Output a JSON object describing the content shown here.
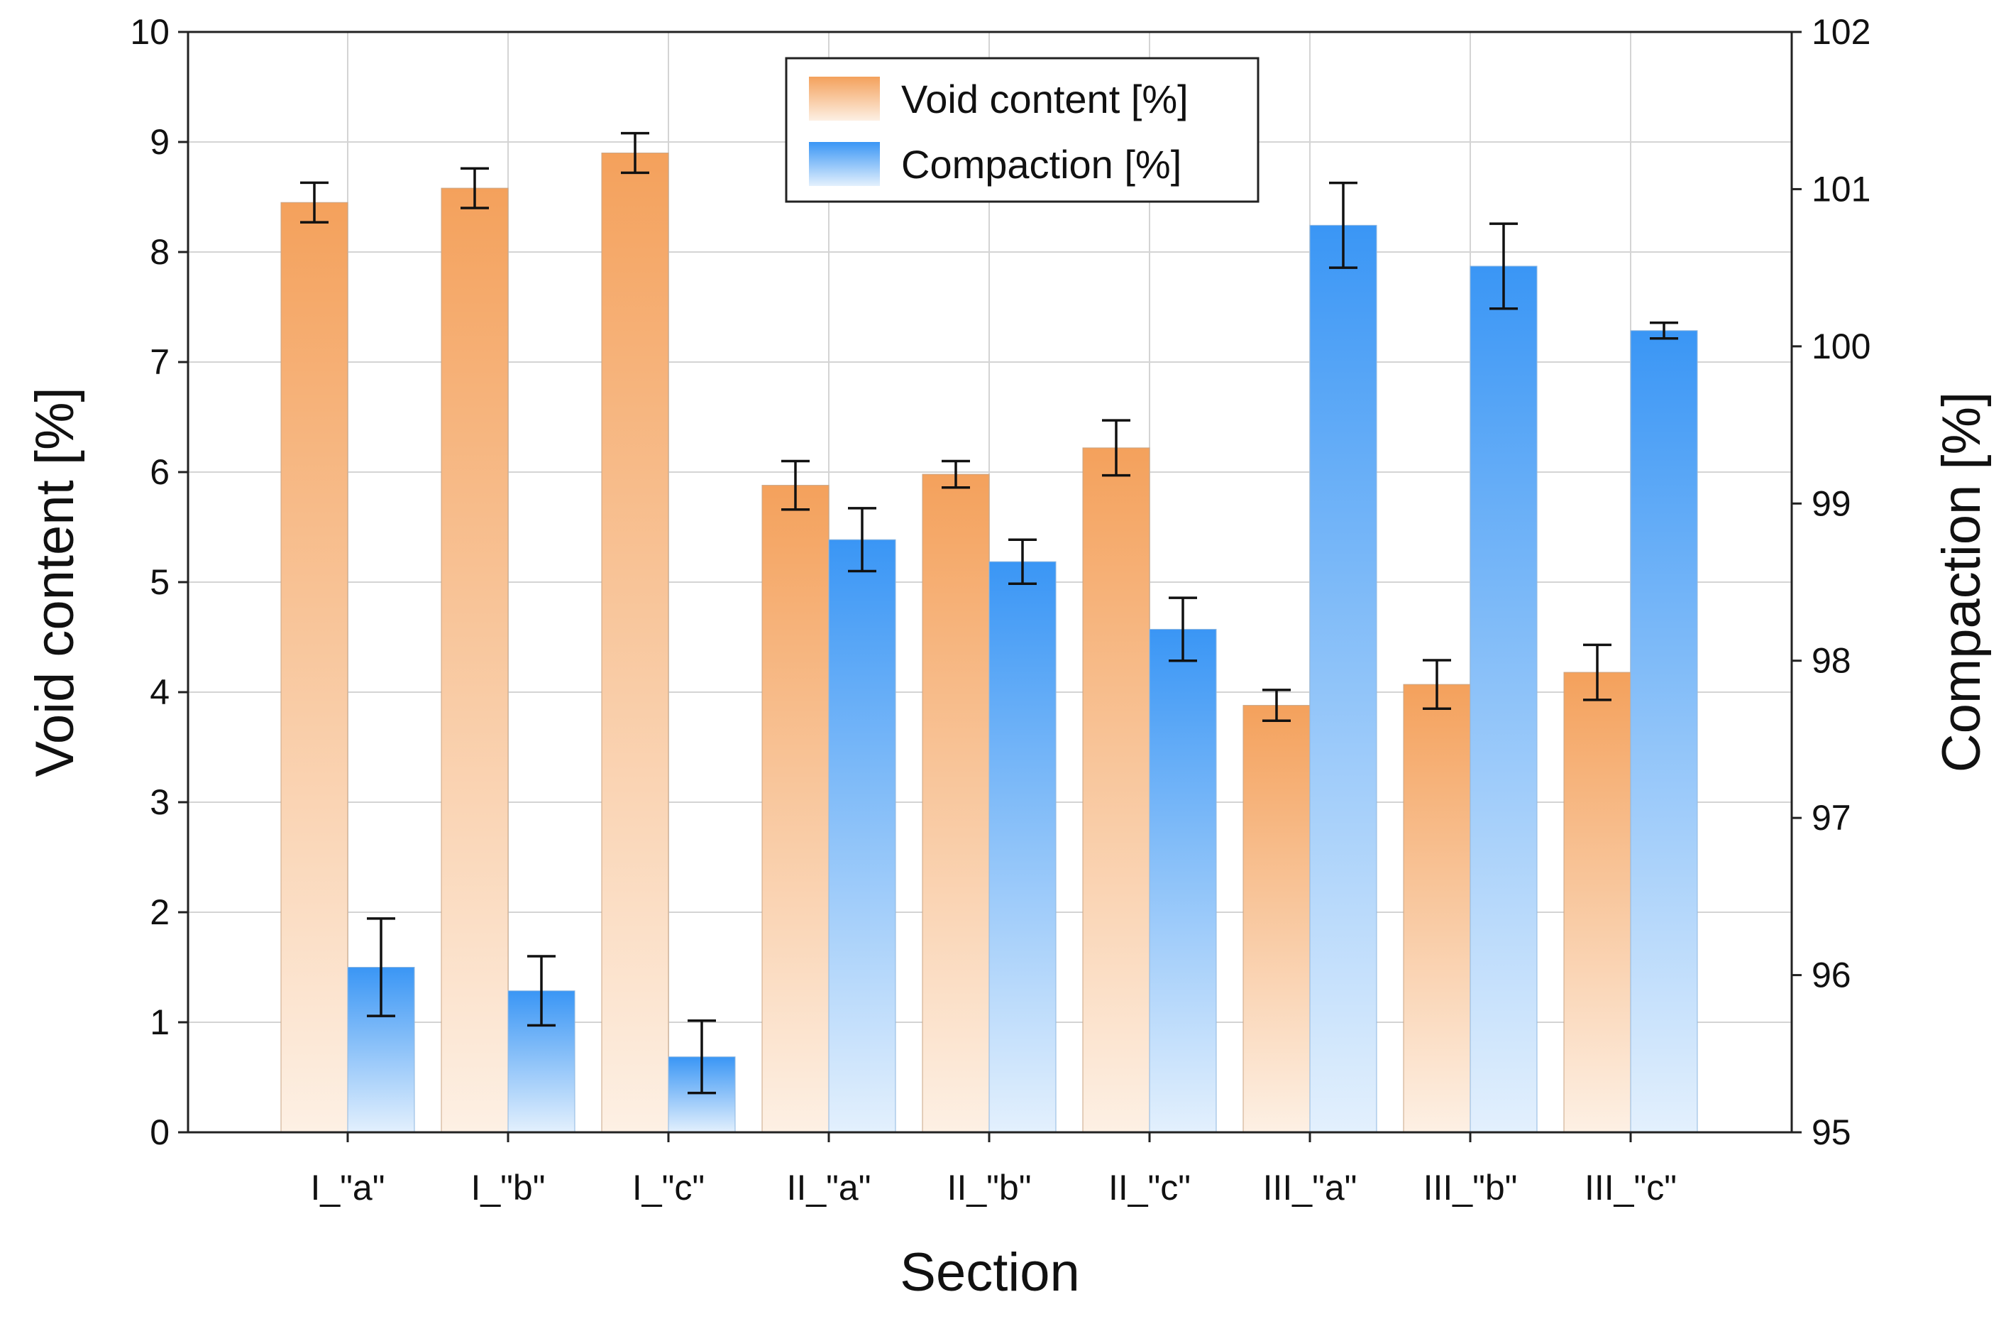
{
  "chart_data": {
    "type": "bar",
    "xlabel": "Section",
    "ylabel_left": "Void content [%]",
    "ylabel_right": "Compaction [%]",
    "categories": [
      "I_\"a\"",
      "I_\"b\"",
      "I_\"c\"",
      "II_\"a\"",
      "II_\"b\"",
      "II_\"c\"",
      "III_\"a\"",
      "III_\"b\"",
      "III_\"c\""
    ],
    "left_axis": {
      "min": 0,
      "max": 10,
      "ticks": [
        0,
        1,
        2,
        3,
        4,
        5,
        6,
        7,
        8,
        9,
        10
      ]
    },
    "right_axis": {
      "min": 95,
      "max": 102,
      "ticks": [
        95,
        96,
        97,
        98,
        99,
        100,
        101,
        102
      ]
    },
    "grid": true,
    "legend": {
      "position": "top-center"
    },
    "series": [
      {
        "name": "Void content [%]",
        "axis": "left",
        "color": "#f4a15c",
        "values": [
          8.45,
          8.58,
          8.9,
          5.88,
          5.98,
          6.22,
          3.88,
          4.07,
          4.18
        ],
        "error": [
          0.18,
          0.18,
          0.18,
          0.22,
          0.12,
          0.25,
          0.14,
          0.22,
          0.25
        ]
      },
      {
        "name": "Compaction [%]",
        "axis": "right",
        "color": "#3a96f5",
        "values": [
          96.05,
          95.9,
          95.48,
          98.77,
          98.63,
          98.2,
          100.77,
          100.51,
          100.1
        ],
        "error": [
          0.31,
          0.22,
          0.23,
          0.2,
          0.14,
          0.2,
          0.27,
          0.27,
          0.05
        ]
      }
    ]
  }
}
